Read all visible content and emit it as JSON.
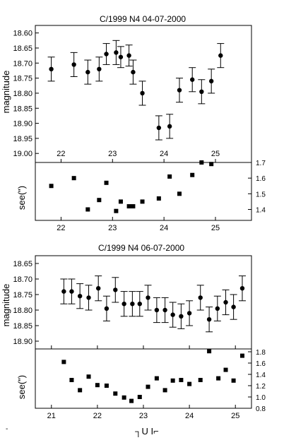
{
  "chart_data": [
    {
      "type": "scatter",
      "title": "C/1999 N4  04-07-2000",
      "xlabel": "",
      "ylabel": "magnitude",
      "xlim": [
        21.5,
        25.7
      ],
      "ylim": [
        18.575,
        19.03
      ],
      "y_inverted": true,
      "xticks": [
        "22",
        "23",
        "24",
        "25"
      ],
      "yticks": [
        "18.60",
        "18.65",
        "18.70",
        "18.75",
        "18.80",
        "18.85",
        "18.90",
        "18.95",
        "19.00"
      ],
      "series": [
        {
          "marker": "circle",
          "error_bars": true,
          "points": [
            {
              "x": 21.81,
              "y": 18.72,
              "err": 0.04
            },
            {
              "x": 22.25,
              "y": 18.705,
              "err": 0.04
            },
            {
              "x": 22.52,
              "y": 18.73,
              "err": 0.04
            },
            {
              "x": 22.74,
              "y": 18.72,
              "err": 0.04
            },
            {
              "x": 22.88,
              "y": 18.67,
              "err": 0.035
            },
            {
              "x": 23.07,
              "y": 18.665,
              "err": 0.04
            },
            {
              "x": 23.16,
              "y": 18.68,
              "err": 0.035
            },
            {
              "x": 23.32,
              "y": 18.675,
              "err": 0.035
            },
            {
              "x": 23.4,
              "y": 18.73,
              "err": 0.04
            },
            {
              "x": 23.58,
              "y": 18.8,
              "err": 0.04
            },
            {
              "x": 23.9,
              "y": 18.915,
              "err": 0.04
            },
            {
              "x": 24.11,
              "y": 18.91,
              "err": 0.04
            },
            {
              "x": 24.3,
              "y": 18.79,
              "err": 0.04
            },
            {
              "x": 24.55,
              "y": 18.755,
              "err": 0.04
            },
            {
              "x": 24.73,
              "y": 18.795,
              "err": 0.04
            },
            {
              "x": 24.92,
              "y": 18.76,
              "err": 0.04
            },
            {
              "x": 25.1,
              "y": 18.675,
              "err": 0.04
            }
          ]
        }
      ]
    },
    {
      "type": "scatter",
      "title": "",
      "xlabel": "",
      "ylabel": "see(\")",
      "xlim": [
        21.5,
        25.7
      ],
      "ylim": [
        1.33,
        1.7
      ],
      "xticks": [
        "22",
        "23",
        "24",
        "25"
      ],
      "yticks": [
        "1.4",
        "1.5",
        "1.6",
        "1.7"
      ],
      "series": [
        {
          "marker": "square",
          "points": [
            {
              "x": 21.81,
              "y": 1.55
            },
            {
              "x": 22.25,
              "y": 1.6
            },
            {
              "x": 22.52,
              "y": 1.4
            },
            {
              "x": 22.74,
              "y": 1.46
            },
            {
              "x": 22.88,
              "y": 1.57
            },
            {
              "x": 23.07,
              "y": 1.39
            },
            {
              "x": 23.16,
              "y": 1.45
            },
            {
              "x": 23.32,
              "y": 1.42
            },
            {
              "x": 23.4,
              "y": 1.42
            },
            {
              "x": 23.58,
              "y": 1.45
            },
            {
              "x": 23.9,
              "y": 1.47
            },
            {
              "x": 24.11,
              "y": 1.61
            },
            {
              "x": 24.3,
              "y": 1.5
            },
            {
              "x": 24.55,
              "y": 1.62
            },
            {
              "x": 24.73,
              "y": 1.7
            },
            {
              "x": 24.92,
              "y": 1.69
            }
          ]
        }
      ]
    },
    {
      "type": "scatter",
      "title": "C/1999 N4  06-07-2000",
      "xlabel": "",
      "ylabel": "magnitude",
      "xlim": [
        20.65,
        25.35
      ],
      "ylim": [
        18.625,
        18.925
      ],
      "y_inverted": true,
      "xticks": [
        "21",
        "22",
        "23",
        "24",
        "25"
      ],
      "yticks": [
        "18.65",
        "18.70",
        "18.75",
        "18.80",
        "18.85",
        "18.90"
      ],
      "series": [
        {
          "marker": "circle",
          "error_bars": true,
          "points": [
            {
              "x": 21.27,
              "y": 18.74,
              "err": 0.04
            },
            {
              "x": 21.44,
              "y": 18.74,
              "err": 0.04
            },
            {
              "x": 21.62,
              "y": 18.755,
              "err": 0.04
            },
            {
              "x": 21.81,
              "y": 18.76,
              "err": 0.04
            },
            {
              "x": 22.02,
              "y": 18.73,
              "err": 0.04
            },
            {
              "x": 22.2,
              "y": 18.795,
              "err": 0.04
            },
            {
              "x": 22.39,
              "y": 18.735,
              "err": 0.04
            },
            {
              "x": 22.58,
              "y": 18.78,
              "err": 0.04
            },
            {
              "x": 22.76,
              "y": 18.78,
              "err": 0.04
            },
            {
              "x": 22.92,
              "y": 18.78,
              "err": 0.04
            },
            {
              "x": 23.1,
              "y": 18.76,
              "err": 0.04
            },
            {
              "x": 23.29,
              "y": 18.8,
              "err": 0.04
            },
            {
              "x": 23.47,
              "y": 18.8,
              "err": 0.04
            },
            {
              "x": 23.64,
              "y": 18.815,
              "err": 0.04
            },
            {
              "x": 23.82,
              "y": 18.82,
              "err": 0.04
            },
            {
              "x": 24.0,
              "y": 18.81,
              "err": 0.04
            },
            {
              "x": 24.24,
              "y": 18.76,
              "err": 0.04
            },
            {
              "x": 24.43,
              "y": 18.83,
              "err": 0.04
            },
            {
              "x": 24.61,
              "y": 18.795,
              "err": 0.04
            },
            {
              "x": 24.79,
              "y": 18.775,
              "err": 0.04
            },
            {
              "x": 24.96,
              "y": 18.79,
              "err": 0.04
            },
            {
              "x": 25.15,
              "y": 18.73,
              "err": 0.04
            }
          ]
        }
      ]
    },
    {
      "type": "scatter",
      "title": "",
      "xlabel": "",
      "ylabel": "see(\")",
      "xlim": [
        20.65,
        25.35
      ],
      "ylim": [
        0.8,
        1.85
      ],
      "xticks": [
        "21",
        "22",
        "23",
        "24",
        "25"
      ],
      "yticks": [
        "0.8",
        "1.0",
        "1.2",
        "1.4",
        "1.6",
        "1.8"
      ],
      "series": [
        {
          "marker": "square",
          "points": [
            {
              "x": 21.27,
              "y": 1.62
            },
            {
              "x": 21.44,
              "y": 1.3
            },
            {
              "x": 21.62,
              "y": 1.12
            },
            {
              "x": 21.81,
              "y": 1.36
            },
            {
              "x": 22.0,
              "y": 1.21
            },
            {
              "x": 22.2,
              "y": 1.2
            },
            {
              "x": 22.39,
              "y": 1.06
            },
            {
              "x": 22.58,
              "y": 0.99
            },
            {
              "x": 22.74,
              "y": 0.93
            },
            {
              "x": 22.92,
              "y": 1.0
            },
            {
              "x": 23.1,
              "y": 1.18
            },
            {
              "x": 23.29,
              "y": 1.33
            },
            {
              "x": 23.47,
              "y": 1.12
            },
            {
              "x": 23.64,
              "y": 1.29
            },
            {
              "x": 23.82,
              "y": 1.3
            },
            {
              "x": 24.0,
              "y": 1.23
            },
            {
              "x": 24.24,
              "y": 1.3
            },
            {
              "x": 24.43,
              "y": 1.81
            },
            {
              "x": 24.63,
              "y": 1.33
            },
            {
              "x": 24.79,
              "y": 1.48
            },
            {
              "x": 24.96,
              "y": 1.29
            },
            {
              "x": 25.15,
              "y": 1.73
            }
          ]
        }
      ]
    }
  ],
  "footer": {
    "stray_mark": "-",
    "glyph": "┐U I⌐"
  }
}
